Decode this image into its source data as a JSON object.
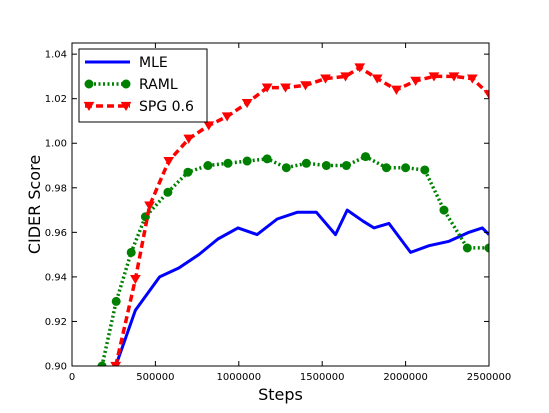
{
  "chart_data": {
    "type": "line",
    "xlabel": "Steps",
    "ylabel": "CIDER Score",
    "xlim": [
      0,
      2500000
    ],
    "ylim": [
      0.9,
      1.045
    ],
    "xticks": [
      0,
      500000,
      1000000,
      1500000,
      2000000,
      2500000
    ],
    "xtick_labels": [
      "0",
      "500000",
      "1000000",
      "1500000",
      "2000000",
      "2500000"
    ],
    "yticks": [
      0.9,
      0.92,
      0.94,
      0.96,
      0.98,
      1.0,
      1.02,
      1.04
    ],
    "ytick_labels": [
      "0.90",
      "0.92",
      "0.94",
      "0.96",
      "0.98",
      "1.00",
      "1.02",
      "1.04"
    ],
    "grid": false,
    "legend_position": "top-left",
    "series": [
      {
        "name": "MLE",
        "color": "#0000ff",
        "style": "solid",
        "marker": "none",
        "x": [
          262000,
          380000,
          525000,
          640000,
          760000,
          875000,
          995000,
          1110000,
          1230000,
          1350000,
          1465000,
          1580000,
          1650000,
          1745000,
          1810000,
          1900000,
          2030000,
          2140000,
          2260000,
          2380000,
          2460000,
          2500000
        ],
        "y": [
          0.9,
          0.925,
          0.94,
          0.944,
          0.95,
          0.957,
          0.962,
          0.959,
          0.966,
          0.969,
          0.969,
          0.959,
          0.97,
          0.965,
          0.962,
          0.964,
          0.951,
          0.954,
          0.956,
          0.96,
          0.962,
          0.959
        ]
      },
      {
        "name": "RAML",
        "color": "#008000",
        "style": "dotted",
        "marker": "circle",
        "x": [
          180000,
          265000,
          355000,
          440000,
          575000,
          695000,
          815000,
          935000,
          1050000,
          1170000,
          1285000,
          1405000,
          1525000,
          1645000,
          1760000,
          1885000,
          2000000,
          2115000,
          2230000,
          2370000,
          2500000
        ],
        "y": [
          0.9,
          0.929,
          0.951,
          0.967,
          0.978,
          0.987,
          0.99,
          0.991,
          0.992,
          0.993,
          0.989,
          0.991,
          0.99,
          0.99,
          0.994,
          0.989,
          0.989,
          0.988,
          0.97,
          0.953,
          0.953
        ]
      },
      {
        "name": "SPG 0.6",
        "color": "#ff0000",
        "style": "dashed",
        "marker": "triangle-down",
        "x": [
          262000,
          380000,
          465000,
          580000,
          700000,
          820000,
          930000,
          1050000,
          1170000,
          1280000,
          1400000,
          1520000,
          1640000,
          1725000,
          1830000,
          1945000,
          2060000,
          2170000,
          2290000,
          2400000,
          2500000
        ],
        "y": [
          0.9,
          0.939,
          0.972,
          0.992,
          1.002,
          1.008,
          1.012,
          1.018,
          1.025,
          1.025,
          1.026,
          1.029,
          1.03,
          1.034,
          1.029,
          1.024,
          1.028,
          1.03,
          1.03,
          1.029,
          1.022
        ]
      }
    ]
  }
}
